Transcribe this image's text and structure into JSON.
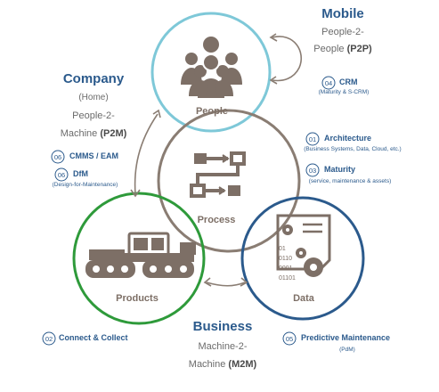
{
  "diagram": {
    "mobile": {
      "title": "Mobile",
      "line1": "People-2-",
      "line2_prefix": "People ",
      "line2_bold": "(P2P)"
    },
    "company": {
      "title": "Company",
      "line1": "(Home)",
      "line2": "People-2-",
      "line3_prefix": "Machine ",
      "line3_bold": "(P2M)"
    },
    "business": {
      "title": "Business",
      "line1": "Machine-2-",
      "line2_prefix": "Machine ",
      "line2_bold": "(M2M)"
    },
    "circles": {
      "people": "People",
      "process": "Process",
      "products": "Products",
      "data": "Data"
    },
    "data_icon_text": [
      "01",
      "0110",
      "0001",
      "01101"
    ],
    "items": [
      {
        "num": "01",
        "label": "Architecture",
        "sub": "(Business Systems, Data, Cloud, etc.)"
      },
      {
        "num": "02",
        "label": "Connect & Collect",
        "sub": ""
      },
      {
        "num": "03",
        "label": "Maturity",
        "sub": "(service, maintenance & assets)"
      },
      {
        "num": "04",
        "label": "CRM",
        "sub": "(Maturity & S-CRM)"
      },
      {
        "num": "05",
        "label": "Predictive Maintenance",
        "sub": "(PdM)"
      },
      {
        "num": "06",
        "label": "CMMS / EAM",
        "sub": ""
      },
      {
        "num": "06",
        "label": "DfM",
        "sub": "(Design-for-Maintenance)"
      }
    ],
    "colors": {
      "people": "#7ec8d8",
      "process": "#8a7d73",
      "products": "#2e9a3a",
      "data": "#2b5a8c",
      "icon": "#7d6f66",
      "heading": "#2b5a8c"
    }
  }
}
